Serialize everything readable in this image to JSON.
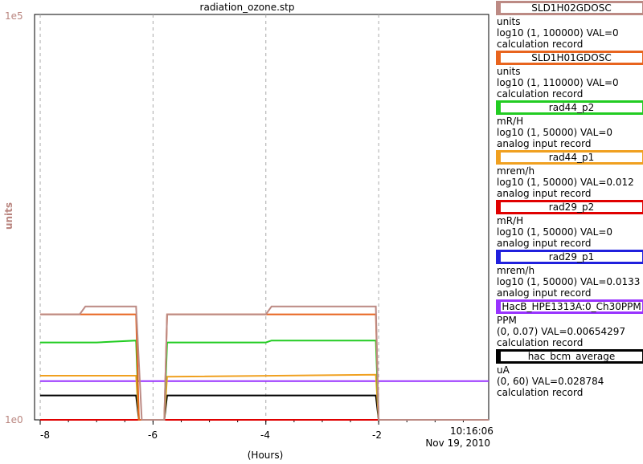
{
  "chart_data": {
    "type": "line",
    "title": "radiation_ozone.stp",
    "ylabel": "units",
    "xlabel": "(Hours)",
    "y_scale": "log",
    "y_top_label": "1e5",
    "y_bottom_label": "1e0",
    "ylim": [
      1,
      100000
    ],
    "xlim": [
      -8.1,
      -0.05
    ],
    "x_ticks": [
      "-8",
      "-6",
      "-4",
      "-2"
    ],
    "time": "10:16:06",
    "date": "Nov 19, 2010",
    "grid": true,
    "series": [
      {
        "name": "SLD1H02GDOSC",
        "color": "#bc8a84",
        "points": [
          [
            -8,
            20
          ],
          [
            -7.3,
            20
          ],
          [
            -7.2,
            25
          ],
          [
            -6.3,
            25
          ],
          [
            -6.2,
            1
          ],
          [
            -5.8,
            1
          ],
          [
            -5.75,
            20
          ],
          [
            -4,
            20
          ],
          [
            -3.9,
            25
          ],
          [
            -2.05,
            25
          ],
          [
            -2,
            1
          ],
          [
            -0.05,
            1
          ]
        ]
      },
      {
        "name": "SLD1H01GDOSC",
        "color": "#e8641e",
        "points": [
          [
            -8,
            20
          ],
          [
            -6.3,
            20
          ],
          [
            -6.25,
            1
          ],
          [
            -5.8,
            1
          ],
          [
            -5.75,
            20
          ],
          [
            -2.05,
            20
          ],
          [
            -2,
            1
          ],
          [
            -0.05,
            1
          ]
        ]
      },
      {
        "name": "rad44_p2",
        "color": "#22cc22",
        "points": [
          [
            -8,
            9
          ],
          [
            -7,
            9
          ],
          [
            -6.3,
            9.5
          ],
          [
            -6.25,
            1
          ],
          [
            -5.8,
            1
          ],
          [
            -5.75,
            9
          ],
          [
            -4,
            9
          ],
          [
            -3.9,
            9.5
          ],
          [
            -2.05,
            9.5
          ],
          [
            -2,
            1
          ],
          [
            -0.05,
            1
          ]
        ]
      },
      {
        "name": "rad44_p1",
        "color": "#f0a020",
        "points": [
          [
            -8,
            3.5
          ],
          [
            -6.3,
            3.5
          ],
          [
            -6.25,
            1
          ],
          [
            -5.8,
            1
          ],
          [
            -5.75,
            3.4
          ],
          [
            -2.05,
            3.6
          ],
          [
            -2,
            1
          ],
          [
            -0.05,
            1
          ]
        ]
      },
      {
        "name": "rad29_p2",
        "color": "#e00000",
        "points": [
          [
            -8,
            1
          ],
          [
            -0.05,
            1
          ]
        ]
      },
      {
        "name": "rad29_p1",
        "color": "#2020dd",
        "points": [
          [
            -8,
            1
          ],
          [
            -0.05,
            1
          ]
        ]
      },
      {
        "name": "HacB_HPE1313A:0_Ch30PPM",
        "color": "#9933ff",
        "points": [
          [
            -8,
            3
          ],
          [
            -6,
            3
          ],
          [
            -4,
            3
          ],
          [
            -2,
            3
          ],
          [
            -0.05,
            3
          ]
        ]
      },
      {
        "name": "hac_bcm_average",
        "color": "#000000",
        "points": [
          [
            -8,
            2
          ],
          [
            -6.3,
            2
          ],
          [
            -6.25,
            1
          ],
          [
            -5.8,
            1
          ],
          [
            -5.75,
            2
          ],
          [
            -2.05,
            2
          ],
          [
            -2,
            1
          ],
          [
            -0.05,
            1
          ]
        ]
      }
    ]
  },
  "legend": [
    {
      "name": "SLD1H02GDOSC",
      "color": "#bc8a84",
      "lines": [
        "units",
        "log10 (1, 100000) VAL=0",
        "calculation record"
      ]
    },
    {
      "name": "SLD1H01GDOSC",
      "color": "#e8641e",
      "lines": [
        "units",
        "log10 (1, 110000) VAL=0",
        "calculation record"
      ]
    },
    {
      "name": "rad44_p2",
      "color": "#22cc22",
      "lines": [
        "mR/H",
        "log10 (1, 50000) VAL=0",
        "analog input record"
      ]
    },
    {
      "name": "rad44_p1",
      "color": "#f0a020",
      "lines": [
        "mrem/h",
        "log10 (1, 50000) VAL=0.012",
        "analog input record"
      ]
    },
    {
      "name": "rad29_p2",
      "color": "#e00000",
      "lines": [
        "mR/H",
        "log10 (1, 50000) VAL=0",
        "analog input record"
      ]
    },
    {
      "name": "rad29_p1",
      "color": "#2020dd",
      "lines": [
        "mrem/h",
        "log10 (1, 50000) VAL=0.0133",
        "analog input record"
      ]
    },
    {
      "name": "HacB_HPE1313A:0_Ch30PPM",
      "color": "#9933ff",
      "lines": [
        "PPM",
        "(0, 0.07) VAL=0.00654297",
        "calculation record"
      ]
    },
    {
      "name": "hac_bcm_average",
      "color": "#000000",
      "lines": [
        "uA",
        "(0, 60) VAL=0.028784",
        "calculation record"
      ]
    }
  ]
}
